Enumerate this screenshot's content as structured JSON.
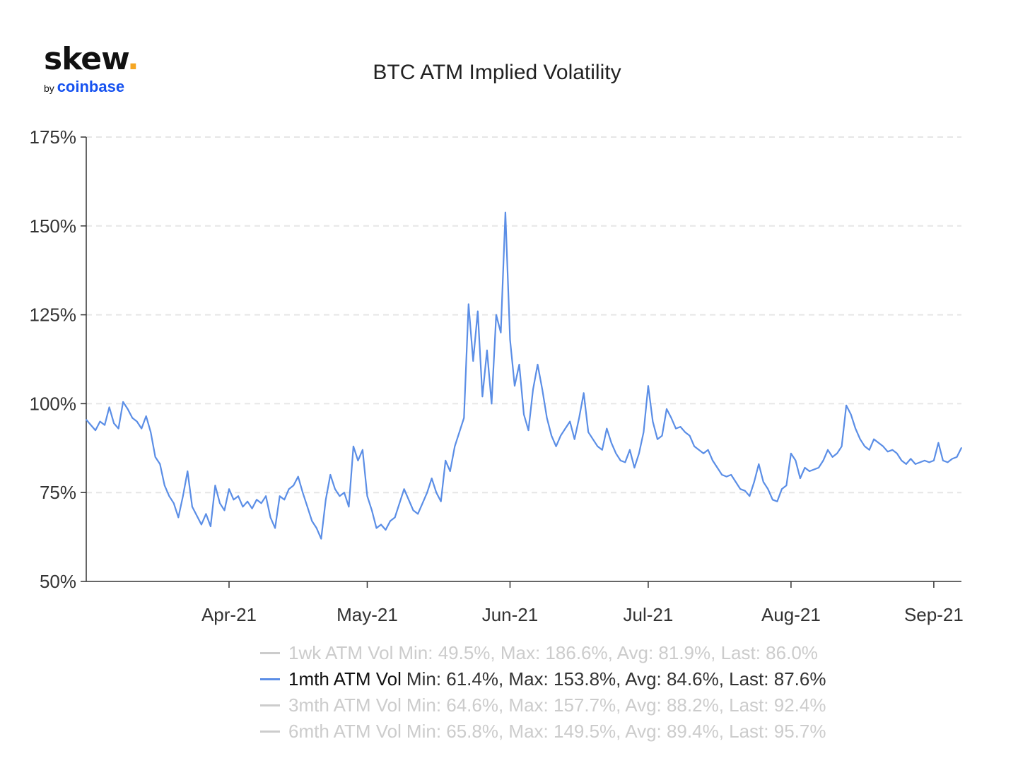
{
  "logo": {
    "brand": "skew",
    "dot": ".",
    "by": "by",
    "owner": "coinbase"
  },
  "colors": {
    "line": "#5b8ee6",
    "grid": "#e6e6e6",
    "axis": "#333333",
    "hidden": "#cccccc"
  },
  "chart_data": {
    "type": "line",
    "title": "BTC ATM Implied Volatility",
    "xlabel": "",
    "ylabel": "",
    "ylim": [
      50,
      175
    ],
    "yticks": [
      "50%",
      "75%",
      "100%",
      "125%",
      "150%",
      "175%"
    ],
    "xlim": [
      "2021-03-01",
      "2021-09-07"
    ],
    "xticks": [
      {
        "date": "2021-04-01",
        "label": "Apr-21"
      },
      {
        "date": "2021-05-01",
        "label": "May-21"
      },
      {
        "date": "2021-06-01",
        "label": "Jun-21"
      },
      {
        "date": "2021-07-01",
        "label": "Jul-21"
      },
      {
        "date": "2021-08-01",
        "label": "Aug-21"
      },
      {
        "date": "2021-09-01",
        "label": "Sep-21"
      }
    ],
    "grid": true,
    "legend_position": "bottom",
    "series": [
      {
        "name": "1wk ATM Vol",
        "stats": "Min: 49.5%, Max: 186.6%, Avg: 81.9%, Last: 86.0%",
        "visible": false
      },
      {
        "name": "1mth ATM Vol",
        "stats": "Min: 61.4%, Max: 153.8%, Avg: 84.6%, Last: 87.6%",
        "visible": true,
        "color": "#5b8ee6",
        "points": [
          [
            "2021-03-01",
            95.5
          ],
          [
            "2021-03-02",
            94.0
          ],
          [
            "2021-03-03",
            92.5
          ],
          [
            "2021-03-04",
            95.0
          ],
          [
            "2021-03-05",
            94.0
          ],
          [
            "2021-03-06",
            99.0
          ],
          [
            "2021-03-07",
            94.5
          ],
          [
            "2021-03-08",
            93.0
          ],
          [
            "2021-03-09",
            100.5
          ],
          [
            "2021-03-10",
            98.5
          ],
          [
            "2021-03-11",
            96.0
          ],
          [
            "2021-03-12",
            95.0
          ],
          [
            "2021-03-13",
            93.0
          ],
          [
            "2021-03-14",
            96.5
          ],
          [
            "2021-03-15",
            92.0
          ],
          [
            "2021-03-16",
            85.0
          ],
          [
            "2021-03-17",
            83.0
          ],
          [
            "2021-03-18",
            77.0
          ],
          [
            "2021-03-19",
            74.0
          ],
          [
            "2021-03-20",
            72.0
          ],
          [
            "2021-03-21",
            68.0
          ],
          [
            "2021-03-22",
            74.0
          ],
          [
            "2021-03-23",
            81.0
          ],
          [
            "2021-03-24",
            71.0
          ],
          [
            "2021-03-25",
            68.5
          ],
          [
            "2021-03-26",
            66.0
          ],
          [
            "2021-03-27",
            69.0
          ],
          [
            "2021-03-28",
            65.5
          ],
          [
            "2021-03-29",
            77.0
          ],
          [
            "2021-03-30",
            72.0
          ],
          [
            "2021-03-31",
            70.0
          ],
          [
            "2021-04-01",
            76.0
          ],
          [
            "2021-04-02",
            73.0
          ],
          [
            "2021-04-03",
            74.0
          ],
          [
            "2021-04-04",
            71.0
          ],
          [
            "2021-04-05",
            72.5
          ],
          [
            "2021-04-06",
            70.5
          ],
          [
            "2021-04-07",
            73.0
          ],
          [
            "2021-04-08",
            72.0
          ],
          [
            "2021-04-09",
            74.0
          ],
          [
            "2021-04-10",
            68.0
          ],
          [
            "2021-04-11",
            65.0
          ],
          [
            "2021-04-12",
            74.0
          ],
          [
            "2021-04-13",
            73.0
          ],
          [
            "2021-04-14",
            76.0
          ],
          [
            "2021-04-15",
            77.0
          ],
          [
            "2021-04-16",
            79.5
          ],
          [
            "2021-04-17",
            75.0
          ],
          [
            "2021-04-18",
            71.0
          ],
          [
            "2021-04-19",
            67.0
          ],
          [
            "2021-04-20",
            65.0
          ],
          [
            "2021-04-21",
            62.0
          ],
          [
            "2021-04-22",
            73.0
          ],
          [
            "2021-04-23",
            80.0
          ],
          [
            "2021-04-24",
            76.0
          ],
          [
            "2021-04-25",
            74.0
          ],
          [
            "2021-04-26",
            75.0
          ],
          [
            "2021-04-27",
            71.0
          ],
          [
            "2021-04-28",
            88.0
          ],
          [
            "2021-04-29",
            84.0
          ],
          [
            "2021-04-30",
            87.0
          ],
          [
            "2021-05-01",
            74.0
          ],
          [
            "2021-05-02",
            70.0
          ],
          [
            "2021-05-03",
            65.0
          ],
          [
            "2021-05-04",
            66.0
          ],
          [
            "2021-05-05",
            64.5
          ],
          [
            "2021-05-06",
            67.0
          ],
          [
            "2021-05-07",
            68.0
          ],
          [
            "2021-05-08",
            72.0
          ],
          [
            "2021-05-09",
            76.0
          ],
          [
            "2021-05-10",
            73.0
          ],
          [
            "2021-05-11",
            70.0
          ],
          [
            "2021-05-12",
            69.0
          ],
          [
            "2021-05-13",
            72.0
          ],
          [
            "2021-05-14",
            75.0
          ],
          [
            "2021-05-15",
            79.0
          ],
          [
            "2021-05-16",
            75.0
          ],
          [
            "2021-05-17",
            72.5
          ],
          [
            "2021-05-18",
            84.0
          ],
          [
            "2021-05-19",
            81.0
          ],
          [
            "2021-05-20",
            88.0
          ],
          [
            "2021-05-21",
            92.0
          ],
          [
            "2021-05-22",
            96.0
          ],
          [
            "2021-05-23",
            128.0
          ],
          [
            "2021-05-24",
            112.0
          ],
          [
            "2021-05-25",
            126.0
          ],
          [
            "2021-05-26",
            102.0
          ],
          [
            "2021-05-27",
            115.0
          ],
          [
            "2021-05-28",
            100.0
          ],
          [
            "2021-05-29",
            125.0
          ],
          [
            "2021-05-30",
            120.0
          ],
          [
            "2021-05-31",
            153.8
          ],
          [
            "2021-06-01",
            118.0
          ],
          [
            "2021-06-02",
            105.0
          ],
          [
            "2021-06-03",
            111.0
          ],
          [
            "2021-06-04",
            97.0
          ],
          [
            "2021-06-05",
            92.5
          ],
          [
            "2021-06-06",
            104.0
          ],
          [
            "2021-06-07",
            111.0
          ],
          [
            "2021-06-08",
            104.0
          ],
          [
            "2021-06-09",
            96.0
          ],
          [
            "2021-06-10",
            91.0
          ],
          [
            "2021-06-11",
            88.0
          ],
          [
            "2021-06-12",
            91.0
          ],
          [
            "2021-06-13",
            93.0
          ],
          [
            "2021-06-14",
            95.0
          ],
          [
            "2021-06-15",
            90.0
          ],
          [
            "2021-06-16",
            96.0
          ],
          [
            "2021-06-17",
            103.0
          ],
          [
            "2021-06-18",
            92.0
          ],
          [
            "2021-06-19",
            90.0
          ],
          [
            "2021-06-20",
            88.0
          ],
          [
            "2021-06-21",
            87.0
          ],
          [
            "2021-06-22",
            93.0
          ],
          [
            "2021-06-23",
            89.0
          ],
          [
            "2021-06-24",
            86.0
          ],
          [
            "2021-06-25",
            84.0
          ],
          [
            "2021-06-26",
            83.5
          ],
          [
            "2021-06-27",
            87.0
          ],
          [
            "2021-06-28",
            82.0
          ],
          [
            "2021-06-29",
            86.0
          ],
          [
            "2021-06-30",
            92.0
          ],
          [
            "2021-07-01",
            105.0
          ],
          [
            "2021-07-02",
            95.0
          ],
          [
            "2021-07-03",
            90.0
          ],
          [
            "2021-07-04",
            91.0
          ],
          [
            "2021-07-05",
            98.5
          ],
          [
            "2021-07-06",
            96.0
          ],
          [
            "2021-07-07",
            93.0
          ],
          [
            "2021-07-08",
            93.5
          ],
          [
            "2021-07-09",
            92.0
          ],
          [
            "2021-07-10",
            91.0
          ],
          [
            "2021-07-11",
            88.0
          ],
          [
            "2021-07-12",
            87.0
          ],
          [
            "2021-07-13",
            86.0
          ],
          [
            "2021-07-14",
            87.0
          ],
          [
            "2021-07-15",
            84.0
          ],
          [
            "2021-07-16",
            82.0
          ],
          [
            "2021-07-17",
            80.0
          ],
          [
            "2021-07-18",
            79.5
          ],
          [
            "2021-07-19",
            80.0
          ],
          [
            "2021-07-20",
            78.0
          ],
          [
            "2021-07-21",
            76.0
          ],
          [
            "2021-07-22",
            75.5
          ],
          [
            "2021-07-23",
            74.0
          ],
          [
            "2021-07-24",
            78.0
          ],
          [
            "2021-07-25",
            83.0
          ],
          [
            "2021-07-26",
            78.0
          ],
          [
            "2021-07-27",
            76.0
          ],
          [
            "2021-07-28",
            73.0
          ],
          [
            "2021-07-29",
            72.5
          ],
          [
            "2021-07-30",
            76.0
          ],
          [
            "2021-07-31",
            77.0
          ],
          [
            "2021-08-01",
            86.0
          ],
          [
            "2021-08-02",
            84.0
          ],
          [
            "2021-08-03",
            79.0
          ],
          [
            "2021-08-04",
            82.0
          ],
          [
            "2021-08-05",
            81.0
          ],
          [
            "2021-08-06",
            81.5
          ],
          [
            "2021-08-07",
            82.0
          ],
          [
            "2021-08-08",
            84.0
          ],
          [
            "2021-08-09",
            87.0
          ],
          [
            "2021-08-10",
            85.0
          ],
          [
            "2021-08-11",
            86.0
          ],
          [
            "2021-08-12",
            88.0
          ],
          [
            "2021-08-13",
            99.5
          ],
          [
            "2021-08-14",
            97.0
          ],
          [
            "2021-08-15",
            93.0
          ],
          [
            "2021-08-16",
            90.0
          ],
          [
            "2021-08-17",
            88.0
          ],
          [
            "2021-08-18",
            87.0
          ],
          [
            "2021-08-19",
            90.0
          ],
          [
            "2021-08-20",
            89.0
          ],
          [
            "2021-08-21",
            88.0
          ],
          [
            "2021-08-22",
            86.5
          ],
          [
            "2021-08-23",
            87.0
          ],
          [
            "2021-08-24",
            86.0
          ],
          [
            "2021-08-25",
            84.0
          ],
          [
            "2021-08-26",
            83.0
          ],
          [
            "2021-08-27",
            84.5
          ],
          [
            "2021-08-28",
            83.0
          ],
          [
            "2021-08-29",
            83.5
          ],
          [
            "2021-08-30",
            84.0
          ],
          [
            "2021-08-31",
            83.5
          ],
          [
            "2021-09-01",
            84.0
          ],
          [
            "2021-09-02",
            89.0
          ],
          [
            "2021-09-03",
            84.0
          ],
          [
            "2021-09-04",
            83.5
          ],
          [
            "2021-09-05",
            84.5
          ],
          [
            "2021-09-06",
            85.0
          ],
          [
            "2021-09-07",
            87.6
          ]
        ]
      },
      {
        "name": "3mth ATM Vol",
        "stats": "Min: 64.6%, Max: 157.7%, Avg: 88.2%, Last: 92.4%",
        "visible": false
      },
      {
        "name": "6mth ATM Vol",
        "stats": "Min: 65.8%, Max: 149.5%, Avg: 89.4%, Last: 95.7%",
        "visible": false
      }
    ]
  }
}
